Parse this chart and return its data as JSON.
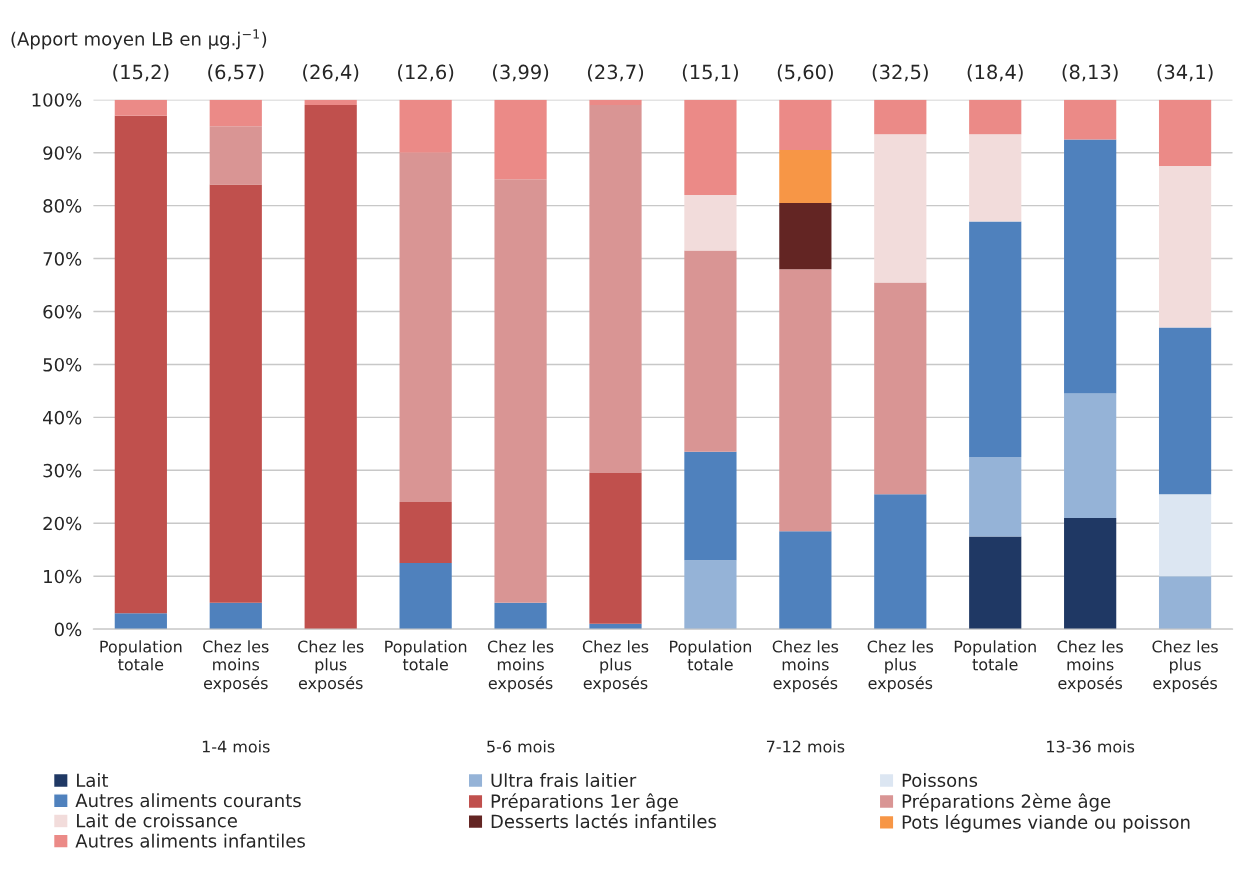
{
  "chart_data": {
    "type": "bar",
    "stacked": true,
    "ylabel": "(Apport moyen LB en µg.j$^{−1}$)",
    "categories": [
      "Population\ntotale",
      "Chez les\nmoins\nexposés",
      "Chez les\nplus\nexposés",
      "Population\ntotale",
      "Chez les\nmoins\nexposés",
      "Chez les\nplus\nexposés",
      "Population\ntotale",
      "Chez les\nmoins\nexposés",
      "Chez les\nplus\nexposés",
      "Population\ntotale",
      "Chez les\nmoins\nexposés",
      "Chez les\nplus\nexposés"
    ],
    "annotations": [
      "(15,2)",
      "(6,57)",
      "(26,4)",
      "(12,6)",
      "(3,99)",
      "(23,7)",
      "(15,1)",
      "(5,60)",
      "(32,5)",
      "(18,4)",
      "(8,13)",
      "(34,1)",
      "1-4 mois",
      "5-6 mois",
      "7-12 mois",
      "13-36 mois"
    ],
    "series": [
      {
        "name": "Lait",
        "color": "#1f3864",
        "values": [
          0,
          0,
          0,
          0,
          0,
          0,
          0,
          0,
          0,
          17.5,
          21,
          0
        ]
      },
      {
        "name": "Ultra frais laitier",
        "color": "#95b3d7",
        "values": [
          0,
          0,
          0,
          0,
          0,
          0,
          13,
          0,
          0,
          15,
          23.5,
          10
        ]
      },
      {
        "name": "Poissons",
        "color": "#dce6f2",
        "values": [
          0,
          0,
          0,
          0,
          0,
          0,
          0,
          0,
          0,
          0,
          0,
          15.5
        ]
      },
      {
        "name": "Autres aliments courants",
        "color": "#4f81bd",
        "values": [
          3,
          5,
          0,
          12.5,
          5,
          1,
          20.5,
          18.5,
          25.5,
          44.5,
          48,
          31.5
        ]
      },
      {
        "name": "Préparations 1er âge",
        "color": "#c0504d",
        "values": [
          94,
          79,
          99,
          11.5,
          0,
          28.5,
          0,
          0,
          0,
          0,
          0,
          0
        ]
      },
      {
        "name": "Préparations 2ème âge",
        "color": "#d99594",
        "values": [
          0,
          11,
          0,
          66,
          80,
          69.5,
          38,
          49.5,
          40,
          0,
          0,
          0
        ]
      },
      {
        "name": "Lait de croissance",
        "color": "#f2dcdb",
        "values": [
          0,
          0,
          0,
          0,
          0,
          0,
          10.5,
          0,
          28,
          16.5,
          0,
          30.5
        ]
      },
      {
        "name": "Desserts lactés infantiles",
        "color": "#632523",
        "values": [
          0,
          0,
          0,
          0,
          0,
          0,
          0,
          12.5,
          0,
          0,
          0,
          0
        ]
      },
      {
        "name": "Pots légumes viande ou poisson",
        "color": "#f79646",
        "values": [
          0,
          0,
          0,
          0,
          0,
          0,
          0,
          10,
          0,
          0,
          0,
          0
        ]
      },
      {
        "name": "Autres aliments infantiles",
        "color": "#eb8a87",
        "values": [
          3,
          5,
          1,
          10,
          15,
          1,
          18,
          9.5,
          6.5,
          6.5,
          7.5,
          12.5
        ]
      }
    ],
    "ylim": [
      0,
      100
    ],
    "yticks": [
      {
        "value": 0,
        "label": "0%"
      },
      {
        "value": 10,
        "label": "10%"
      },
      {
        "value": 20,
        "label": "20%"
      },
      {
        "value": 30,
        "label": "30%"
      },
      {
        "value": 40,
        "label": "40%"
      },
      {
        "value": 50,
        "label": "50%"
      },
      {
        "value": 60,
        "label": "60%"
      },
      {
        "value": 70,
        "label": "70%"
      },
      {
        "value": 80,
        "label": "80%"
      },
      {
        "value": 90,
        "label": "90%"
      },
      {
        "value": 100,
        "label": "100%"
      }
    ],
    "grid": "y",
    "legend": "bottom"
  }
}
